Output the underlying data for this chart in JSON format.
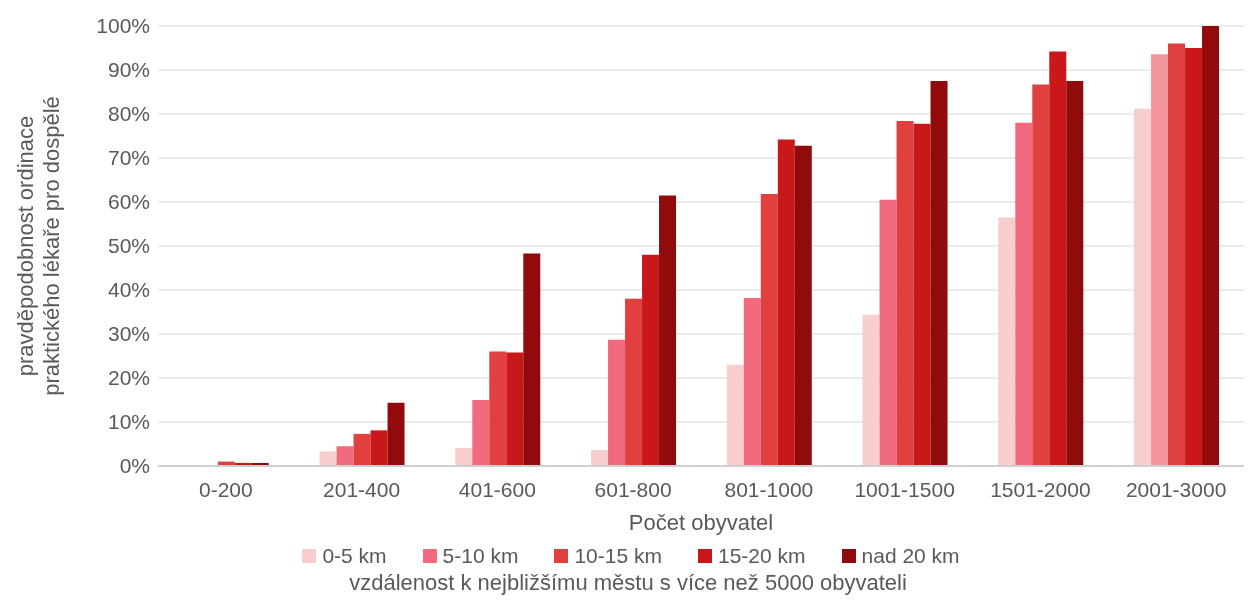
{
  "chart_data": {
    "type": "bar",
    "xlabel": "Počet obyvatel",
    "ylabel": "pravděpodobnost ordinace\npraktického lékaře pro dospělé",
    "legend_title": "vzdálenost k nejbližšímu městu s více než 5000 obyvateli",
    "categories": [
      "0-200",
      "201-400",
      "401-600",
      "601-800",
      "801-1000",
      "1001-1500",
      "1501-2000",
      "2001-3000"
    ],
    "series": [
      {
        "name": "0-5 km",
        "color": "#f7cdcd",
        "values": [
          0,
          3.3,
          4.1,
          3.6,
          23,
          34.4,
          56.5,
          81.2
        ]
      },
      {
        "name": "5-10 km",
        "color": "#f26a7e",
        "colors": [
          "#f26a7e",
          "#f26a7e",
          "#f26a7e",
          "#f26a7e",
          "#f26a7e",
          "#f26a7e",
          "#f26a7e",
          "#f4949f"
        ],
        "values": [
          0,
          4.5,
          15,
          28.7,
          38.2,
          60.5,
          78,
          93.6
        ]
      },
      {
        "name": "10-15 km",
        "color": "#e04040",
        "values": [
          1,
          7.3,
          26,
          38,
          61.8,
          78.4,
          86.7,
          96
        ]
      },
      {
        "name": "15-20 km",
        "color": "#c8181a",
        "values": [
          0.7,
          8.1,
          25.8,
          48,
          74.2,
          77.8,
          94.2,
          95
        ]
      },
      {
        "name": "nad 20 km",
        "color": "#910a0c",
        "values": [
          0.7,
          14.4,
          48.3,
          61.5,
          72.8,
          87.5,
          87.5,
          100
        ]
      }
    ],
    "ylim": [
      0,
      100
    ],
    "yticks": [
      {
        "value": 0,
        "label": "0%"
      },
      {
        "value": 10,
        "label": "10%"
      },
      {
        "value": 20,
        "label": "20%"
      },
      {
        "value": 30,
        "label": "30%"
      },
      {
        "value": 40,
        "label": "40%"
      },
      {
        "value": 50,
        "label": "50%"
      },
      {
        "value": 60,
        "label": "60%"
      },
      {
        "value": 70,
        "label": "70%"
      },
      {
        "value": 80,
        "label": "80%"
      },
      {
        "value": 90,
        "label": "90%"
      },
      {
        "value": 100,
        "label": "100%"
      }
    ],
    "grid": "y",
    "legend": "bottom"
  }
}
